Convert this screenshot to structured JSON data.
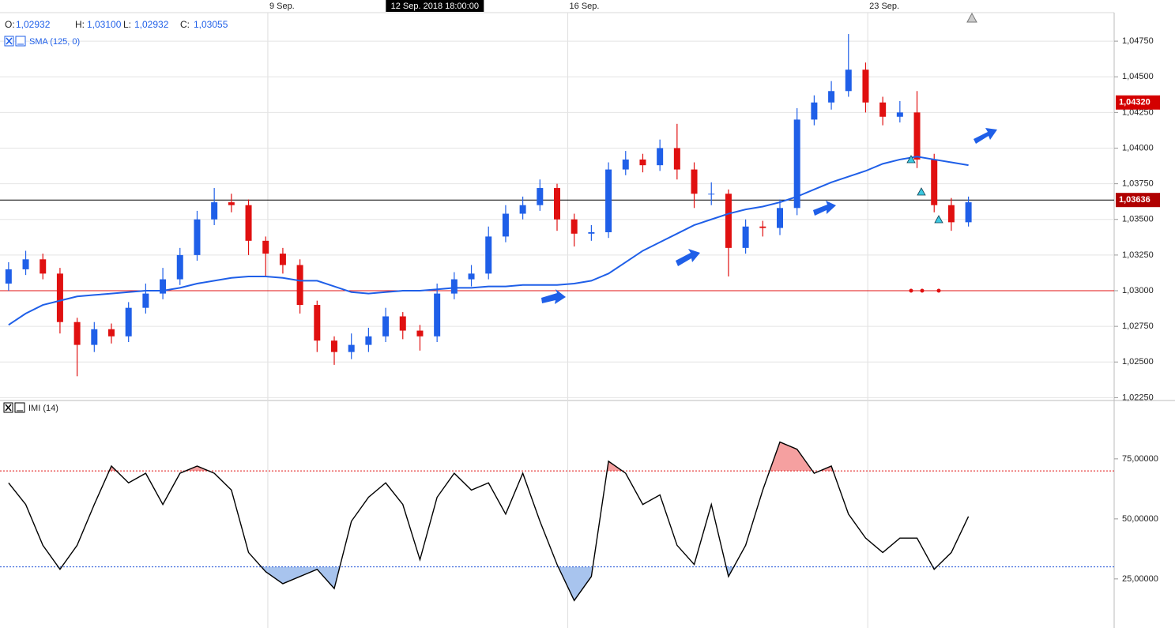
{
  "header": {
    "ohlc": [
      {
        "name": "O:",
        "value": 1.02932,
        "label": "1,02932"
      },
      {
        "name": "H:",
        "value": 1.031,
        "label": "1,03100"
      },
      {
        "name": "L:",
        "value": 1.02932,
        "label": "1,02932"
      },
      {
        "name": "C:",
        "value": 1.03055,
        "label": "1,03055"
      }
    ]
  },
  "chart_data": [
    {
      "type": "candlestick",
      "up_color": "#1f5fe8",
      "down_color": "#e01010",
      "x": [
        0.2,
        0.6,
        1,
        1.4,
        1.8,
        2.2,
        2.6,
        3,
        3.4,
        3.8,
        4.2,
        4.6,
        5,
        5.4,
        5.8,
        6.2,
        6.6,
        7,
        7.4,
        7.8,
        8.2,
        8.6,
        9,
        9.4,
        9.8,
        10.2,
        10.6,
        11,
        11.4,
        11.8,
        12.2,
        12.6,
        13,
        13.4,
        13.8,
        14.2,
        14.6,
        15,
        15.4,
        15.8,
        16.2,
        16.6,
        17,
        17.4,
        17.8,
        18.2,
        18.6,
        19,
        19.4,
        19.8,
        20.2,
        20.6,
        21,
        21.4,
        21.8,
        22.2,
        22.6
      ],
      "open": [
        1.0305,
        1.0315,
        1.0322,
        1.0312,
        1.0278,
        1.0262,
        1.0273,
        1.0268,
        1.0288,
        1.0298,
        1.0308,
        1.0325,
        1.035,
        1.0362,
        1.036,
        1.0335,
        1.0326,
        1.0318,
        1.029,
        1.0265,
        1.0257,
        1.0262,
        1.0268,
        1.0282,
        1.0272,
        1.0268,
        1.0298,
        1.0308,
        1.0312,
        1.0338,
        1.0354,
        1.036,
        1.0372,
        1.035,
        1.034,
        1.0341,
        1.0385,
        1.0392,
        1.0388,
        1.04,
        1.0385,
        1.0368,
        1.0368,
        1.033,
        1.0345,
        1.0344,
        1.0358,
        1.042,
        1.0432,
        1.044,
        1.0455,
        1.0432,
        1.0422,
        1.0425,
        1.0392,
        1.036,
        1.0348
      ],
      "high": [
        1.032,
        1.0328,
        1.0326,
        1.0316,
        1.0281,
        1.0278,
        1.0277,
        1.0292,
        1.0305,
        1.0316,
        1.033,
        1.0356,
        1.0372,
        1.0368,
        1.0364,
        1.0338,
        1.033,
        1.0322,
        1.0293,
        1.0268,
        1.027,
        1.0274,
        1.0288,
        1.0285,
        1.0276,
        1.0305,
        1.0313,
        1.0318,
        1.0345,
        1.036,
        1.0366,
        1.0378,
        1.0375,
        1.0354,
        1.0346,
        1.039,
        1.0398,
        1.0396,
        1.0406,
        1.0417,
        1.039,
        1.0376,
        1.0371,
        1.035,
        1.0349,
        1.0364,
        1.0428,
        1.0437,
        1.0447,
        1.048,
        1.046,
        1.0436,
        1.0433,
        1.044,
        1.0396,
        1.0365,
        1.0366
      ],
      "low": [
        1.03,
        1.0311,
        1.0308,
        1.027,
        1.024,
        1.0257,
        1.0263,
        1.0264,
        1.0284,
        1.0294,
        1.0304,
        1.0321,
        1.0346,
        1.0355,
        1.0325,
        1.031,
        1.0312,
        1.0284,
        1.0257,
        1.0248,
        1.0252,
        1.0257,
        1.0264,
        1.0266,
        1.0258,
        1.0264,
        1.0294,
        1.0303,
        1.0308,
        1.0334,
        1.035,
        1.0356,
        1.0342,
        1.0331,
        1.0335,
        1.0337,
        1.0381,
        1.0383,
        1.0384,
        1.0378,
        1.0358,
        1.036,
        1.031,
        1.0326,
        1.0338,
        1.0339,
        1.0353,
        1.0416,
        1.0427,
        1.0436,
        1.0425,
        1.0416,
        1.0418,
        1.0386,
        1.0355,
        1.0342,
        1.0345
      ],
      "close": [
        1.0315,
        1.0322,
        1.0312,
        1.0278,
        1.0262,
        1.0273,
        1.0268,
        1.0288,
        1.0298,
        1.0308,
        1.0325,
        1.035,
        1.0362,
        1.036,
        1.0335,
        1.0326,
        1.0318,
        1.029,
        1.0265,
        1.0257,
        1.0262,
        1.0268,
        1.0282,
        1.0272,
        1.0268,
        1.0298,
        1.0308,
        1.0312,
        1.0338,
        1.0354,
        1.036,
        1.0372,
        1.035,
        1.034,
        1.0341,
        1.0385,
        1.0392,
        1.0388,
        1.04,
        1.0385,
        1.0368,
        1.0368,
        1.033,
        1.0345,
        1.0344,
        1.0358,
        1.042,
        1.0432,
        1.044,
        1.0455,
        1.0432,
        1.0422,
        1.0425,
        1.0392,
        1.036,
        1.0348,
        1.0362
      ],
      "series": [
        {
          "name": "SMA (125, 0)",
          "color": "#1f5fe8",
          "values": [
            1.0276,
            1.0284,
            1.029,
            1.0293,
            1.0296,
            1.0297,
            1.0298,
            1.0299,
            1.03,
            1.03,
            1.0302,
            1.0305,
            1.0307,
            1.0309,
            1.031,
            1.031,
            1.0309,
            1.0307,
            1.0307,
            1.0303,
            1.0299,
            1.0298,
            1.0299,
            1.03,
            1.03,
            1.0301,
            1.0302,
            1.0302,
            1.0303,
            1.0303,
            1.0304,
            1.0304,
            1.0304,
            1.0305,
            1.0307,
            1.0312,
            1.032,
            1.0328,
            1.0334,
            1.034,
            1.0346,
            1.035,
            1.0354,
            1.0357,
            1.0359,
            1.0362,
            1.0366,
            1.0371,
            1.0376,
            1.038,
            1.0384,
            1.0389,
            1.0392,
            1.0394,
            1.0392,
            1.039,
            1.0388
          ]
        }
      ],
      "xlim": [
        0,
        26
      ],
      "xticks": [
        {
          "value": 6.25,
          "label": "9 Sep."
        },
        {
          "value": 13.25,
          "label": "16 Sep."
        },
        {
          "value": 20.25,
          "label": "23 Sep."
        }
      ],
      "crosshair": {
        "value": 10,
        "label": "12 Sep. 2018 18:00:00"
      },
      "ylim": [
        1.0223,
        1.0495
      ],
      "yticks": [
        {
          "value": 1.0475,
          "label": "1,04750"
        },
        {
          "value": 1.045,
          "label": "1,04500"
        },
        {
          "value": 1.0425,
          "label": "1,04250"
        },
        {
          "value": 1.04,
          "label": "1,04000"
        },
        {
          "value": 1.0375,
          "label": "1,03750"
        },
        {
          "value": 1.035,
          "label": "1,03500"
        },
        {
          "value": 1.0325,
          "label": "1,03250"
        },
        {
          "value": 1.03,
          "label": "1,03000"
        },
        {
          "value": 1.0275,
          "label": "1,02750"
        },
        {
          "value": 1.025,
          "label": "1,02500"
        },
        {
          "value": 1.0225,
          "label": "1,02250"
        }
      ],
      "lines": [
        {
          "value": 1.03,
          "color": "#e01010"
        },
        {
          "value": 1.03636,
          "color": "#000000"
        }
      ],
      "price_tags": [
        {
          "value": 1.0432,
          "label": "1,04320",
          "color": "#d40000"
        },
        {
          "value": 1.03636,
          "label": "1,03636",
          "color": "#b00000"
        }
      ],
      "grid": true
    },
    {
      "type": "line",
      "series": [
        {
          "name": "IMI (14)",
          "color": "#000000",
          "values": [
            65,
            56,
            39,
            29,
            39,
            56,
            72,
            65,
            69,
            56,
            69,
            72,
            69,
            62,
            36,
            28,
            23,
            26,
            29,
            21,
            49,
            59,
            65,
            56,
            33,
            59,
            69,
            62,
            65,
            52,
            69,
            49,
            31,
            16,
            26,
            74,
            69,
            56,
            60,
            39,
            31,
            56,
            26,
            39,
            62,
            82,
            79,
            69,
            72,
            52,
            42,
            36,
            42,
            42,
            29,
            36,
            51
          ]
        }
      ],
      "ylim": [
        6.2,
        99.3
      ],
      "yticks": [
        {
          "value": 75,
          "label": "75,00000"
        },
        {
          "value": 50,
          "label": "50,00000"
        },
        {
          "value": 25,
          "label": "25,00000"
        }
      ],
      "levels": [
        {
          "value": 70,
          "color": "#e01010",
          "fill": "#f5a0a0"
        },
        {
          "value": 30,
          "color": "#1a4fd8",
          "fill": "#a8c4ee"
        }
      ]
    }
  ]
}
